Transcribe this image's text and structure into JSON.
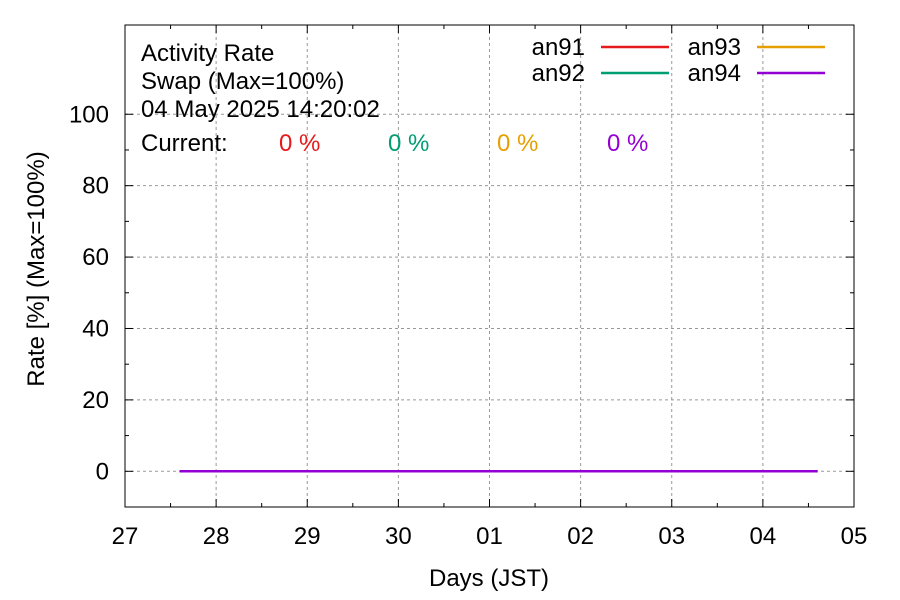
{
  "chart_data": {
    "type": "line",
    "title_lines": [
      "Activity Rate",
      "Swap (Max=100%)",
      "04 May 2025 14:20:02"
    ],
    "current_label": "Current:",
    "xlabel": "Days (JST)",
    "ylabel": "Rate [%]  (Max=100%)",
    "x_ticks": [
      "27",
      "28",
      "29",
      "30",
      "01",
      "02",
      "03",
      "04",
      "05"
    ],
    "xlim": [
      "27",
      "05"
    ],
    "y_ticks": [
      0,
      20,
      40,
      60,
      80,
      100
    ],
    "ylim": [
      -10,
      125
    ],
    "grid": true,
    "legend_position": "top-right",
    "series": [
      {
        "name": "an91",
        "color": "#e41a1c",
        "current": "0 %",
        "x": [
          "27.6",
          "04.6"
        ],
        "values": [
          0,
          0
        ]
      },
      {
        "name": "an92",
        "color": "#009e73",
        "current": "0 %",
        "x": [
          "27.6",
          "04.6"
        ],
        "values": [
          0,
          0
        ]
      },
      {
        "name": "an93",
        "color": "#e69f00",
        "current": "0 %",
        "x": [
          "27.6",
          "04.6"
        ],
        "values": [
          0,
          0
        ]
      },
      {
        "name": "an94",
        "color": "#9400d3",
        "current": "0 %",
        "x": [
          "27.6",
          "04.6"
        ],
        "values": [
          0,
          0
        ]
      }
    ]
  }
}
